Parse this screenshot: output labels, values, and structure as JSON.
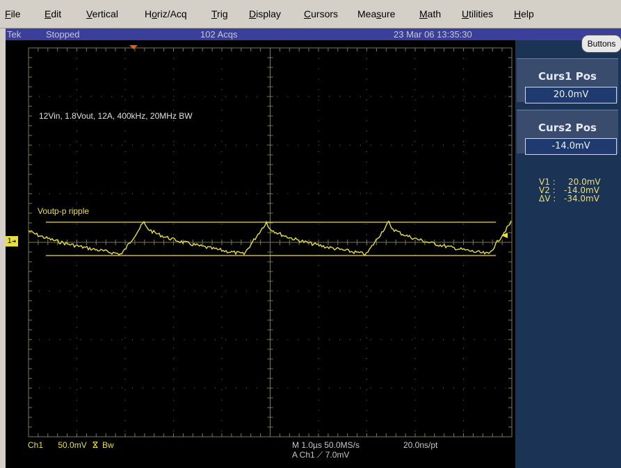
{
  "menu": {
    "file": {
      "acc": "F",
      "rest": "ile"
    },
    "edit": {
      "acc": "E",
      "rest": "dit"
    },
    "vertical": {
      "acc": "V",
      "rest": "ertical"
    },
    "horiz": {
      "pre": "H",
      "acc": "o",
      "rest": "riz/Acq"
    },
    "trig": {
      "acc": "T",
      "rest": "rig"
    },
    "display": {
      "acc": "D",
      "rest": "isplay"
    },
    "cursors": {
      "acc": "C",
      "rest": "ursors"
    },
    "measure": {
      "pre": "Mea",
      "acc": "s",
      "rest": "ure"
    },
    "math": {
      "acc": "M",
      "rest": "ath"
    },
    "utilities": {
      "acc": "U",
      "rest": "tilities"
    },
    "help": {
      "acc": "H",
      "rest": "elp"
    }
  },
  "status": {
    "brand": "Tek",
    "state": "Stopped",
    "acqs": "102 Acqs",
    "datetime": "23 Mar 06 13:35:30"
  },
  "panel": {
    "buttons_label": "Buttons",
    "curs1_label": "Curs1 Pos",
    "curs1_value": "20.0mV",
    "curs2_label": "Curs2 Pos",
    "curs2_value": "-14.0mV",
    "v1_key": "V1 :",
    "v1_val": "20.0mV",
    "v2_key": "V2 :",
    "v2_val": "-14.0mV",
    "dv_key": "ΔV :",
    "dv_val": "-34.0mV"
  },
  "screen": {
    "annotation": "12Vin, 1.8Vout, 12A, 400kHz, 20MHz BW",
    "trace_label": "Voutp-p ripple",
    "ch_marker": "1"
  },
  "bottom": {
    "ch": "Ch1",
    "scale": "50.0mV",
    "bw_glyph": "ⴵ",
    "bw": "Bw",
    "timebase": "M 1.0µs 50.0MS/s",
    "res": "20.0ns/pt",
    "trigger": "A  Ch1  ⟋  7.0mV"
  },
  "colors": {
    "trace": "#e8e040",
    "grid": "#7a7a50",
    "status_bg": "#3a3f9a",
    "panel_bg": "#1b3354"
  }
}
